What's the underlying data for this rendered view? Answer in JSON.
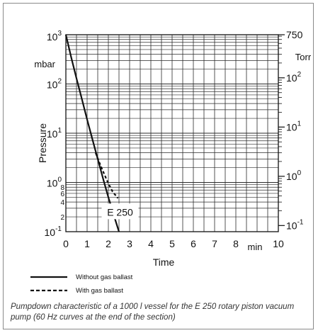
{
  "chart_data": {
    "type": "line",
    "xlabel": "Time",
    "x_unit": "min",
    "ylabel": "Pressure",
    "y_unit_left": "mbar",
    "y_unit_right": "Torr",
    "yscale": "log",
    "xlim": [
      0,
      10
    ],
    "ylim": [
      0.1,
      1000
    ],
    "grid": true,
    "x_ticks": [
      "0",
      "1",
      "2",
      "3",
      "4",
      "5",
      "6",
      "7",
      "8",
      "10"
    ],
    "y_ticks_left": [
      {
        "base": "10",
        "exp": "3"
      },
      {
        "base": "10",
        "exp": "2"
      },
      {
        "base": "10",
        "exp": "1"
      },
      {
        "base": "10",
        "exp": "0"
      },
      {
        "base": "10",
        "exp": "-1"
      }
    ],
    "y_minor_tick_labels_left": [
      "8",
      "6",
      "4",
      "2"
    ],
    "y_ticks_right": [
      {
        "text": "750"
      },
      {
        "base": "10",
        "exp": "2"
      },
      {
        "base": "10",
        "exp": "1"
      },
      {
        "base": "10",
        "exp": "0"
      },
      {
        "base": "10",
        "exp": "-1"
      }
    ],
    "annotation": "E 250",
    "series": [
      {
        "name": "Without gas ballast",
        "style": "solid",
        "x": [
          0,
          0.25,
          0.5,
          0.75,
          1.0,
          1.25,
          1.5,
          1.75,
          2.0,
          2.25,
          2.5
        ],
        "y": [
          1000,
          350,
          130,
          50,
          19,
          7.5,
          3.0,
          1.2,
          0.5,
          0.22,
          0.1
        ]
      },
      {
        "name": "With gas ballast",
        "style": "dashed",
        "x": [
          1.4,
          1.6,
          1.8,
          2.0,
          2.2,
          2.45
        ],
        "y": [
          4.0,
          2.4,
          1.5,
          0.95,
          0.65,
          0.48
        ]
      }
    ],
    "legend_position": "bottom-left"
  },
  "caption": "Pumpdown characteristic of a 1000 l vessel for the E 250 rotary piston vacuum pump (60 Hz curves at the end of the section)",
  "colors": {
    "line": "#111111",
    "grid": "#2a2a2a",
    "caption": "#333333"
  }
}
